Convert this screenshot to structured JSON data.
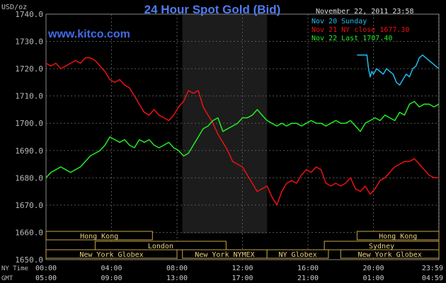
{
  "header": {
    "title": "24 Hour Spot Gold (Bid)",
    "unit": "USD/oz",
    "timestamp": "November 22, 2011 23:58",
    "site": "www.kitco.com"
  },
  "legend": [
    {
      "label": "Nov 20 Sunday",
      "color": "#22bbee"
    },
    {
      "label": "Nov 21 NY close 1677.30",
      "color": "#ee1111"
    },
    {
      "label": "Nov 22 Last 1707.40",
      "color": "#22ee22"
    }
  ],
  "markets": [
    {
      "name": "Hong Kong",
      "start": "00:00",
      "end": "06:30"
    },
    {
      "name": "London",
      "start": "03:00",
      "end": "11:00"
    },
    {
      "name": "New York Globex",
      "start": "00:00",
      "end": "08:00"
    },
    {
      "name": "New York NYMEX",
      "start": "08:20",
      "end": "13:30"
    },
    {
      "name": "NY Globex",
      "start": "13:30",
      "end": "17:15"
    },
    {
      "name": "Sydney",
      "start": "17:00",
      "end": "23:59"
    },
    {
      "name": "Hong Kong",
      "start": "19:00",
      "end": "23:59"
    },
    {
      "name": "New York Globex",
      "start": "18:00",
      "end": "23:59"
    }
  ],
  "time_axis": {
    "ny_label": "NY Time",
    "gmt_label": "GMT",
    "ny_ticks": [
      "00:00",
      "04:00",
      "08:00",
      "12:00",
      "16:00",
      "20:00",
      "23:59"
    ],
    "gmt_ticks": [
      "05:00",
      "09:00",
      "13:00",
      "17:00",
      "21:00",
      "01:00",
      "04:59"
    ]
  },
  "chart_data": {
    "type": "line",
    "title": "24 Hour Spot Gold (Bid)",
    "ylabel": "USD/oz",
    "xlabel": "NY Time",
    "xlim_hours": [
      0,
      24
    ],
    "ylim": [
      1650,
      1740
    ],
    "yticks": [
      1650,
      1660,
      1670,
      1680,
      1690,
      1700,
      1710,
      1720,
      1730,
      1740
    ],
    "shaded_hours": [
      8.33,
      13.5
    ],
    "grid": true,
    "legend_position": "top-right",
    "series": [
      {
        "name": "Nov 20 Sunday",
        "color": "#22bbee",
        "x": [
          19.0,
          19.3,
          19.6,
          19.7,
          19.8,
          19.9,
          20.0,
          20.2,
          20.4,
          20.6,
          20.8,
          21.0,
          21.2,
          21.4,
          21.6,
          21.8,
          22.0,
          22.2,
          22.4,
          22.6,
          22.8,
          23.0,
          23.2,
          23.4,
          23.6,
          23.8,
          24.0
        ],
        "y": [
          1725,
          1725,
          1725,
          1720,
          1717,
          1719,
          1718,
          1720,
          1719,
          1718,
          1720,
          1719,
          1718,
          1715,
          1714,
          1716,
          1718,
          1717,
          1720,
          1721,
          1724,
          1725,
          1724,
          1723,
          1722,
          1721,
          1720
        ]
      },
      {
        "name": "Nov 21 NY close 1677.30",
        "color": "#ee1111",
        "x": [
          0.0,
          0.3,
          0.6,
          0.9,
          1.2,
          1.5,
          1.8,
          2.1,
          2.4,
          2.7,
          3.0,
          3.3,
          3.6,
          3.9,
          4.2,
          4.5,
          4.8,
          5.1,
          5.4,
          5.7,
          6.0,
          6.3,
          6.6,
          6.9,
          7.2,
          7.5,
          7.8,
          8.1,
          8.4,
          8.7,
          9.0,
          9.3,
          9.6,
          9.9,
          10.2,
          10.5,
          10.8,
          11.1,
          11.4,
          11.7,
          12.0,
          12.3,
          12.6,
          12.9,
          13.2,
          13.5,
          13.8,
          14.1,
          14.4,
          14.7,
          15.0,
          15.3,
          15.6,
          15.9,
          16.2,
          16.5,
          16.8,
          17.1,
          17.4,
          17.7,
          18.0,
          18.3,
          18.6,
          18.9,
          19.2,
          19.5,
          19.8,
          20.1,
          20.4,
          20.7,
          21.0,
          21.3,
          21.6,
          21.9,
          22.2,
          22.5,
          22.8,
          23.1,
          23.4,
          23.7,
          24.0
        ],
        "y": [
          1722,
          1721,
          1722,
          1720,
          1721,
          1722,
          1723,
          1722,
          1724,
          1724,
          1723,
          1721,
          1719,
          1716,
          1715,
          1716,
          1714,
          1713,
          1710,
          1707,
          1704,
          1703,
          1705,
          1703,
          1702,
          1701,
          1703,
          1706,
          1708,
          1712,
          1711,
          1712,
          1706,
          1703,
          1700,
          1696,
          1693,
          1690,
          1686,
          1685,
          1684,
          1681,
          1678,
          1675,
          1676,
          1677,
          1673,
          1670,
          1675,
          1678,
          1679,
          1678,
          1681,
          1683,
          1682,
          1684,
          1683,
          1678,
          1677,
          1678,
          1677,
          1678,
          1680,
          1676,
          1675,
          1677,
          1674,
          1676,
          1679,
          1680,
          1682,
          1684,
          1685,
          1686,
          1686,
          1687,
          1685,
          1683,
          1681,
          1680,
          1680
        ]
      },
      {
        "name": "Nov 22 Last 1707.40",
        "color": "#22ee22",
        "x": [
          0.0,
          0.3,
          0.6,
          0.9,
          1.2,
          1.5,
          1.8,
          2.1,
          2.4,
          2.7,
          3.0,
          3.3,
          3.6,
          3.9,
          4.2,
          4.5,
          4.8,
          5.1,
          5.4,
          5.7,
          6.0,
          6.3,
          6.6,
          6.9,
          7.2,
          7.5,
          7.8,
          8.1,
          8.4,
          8.7,
          9.0,
          9.3,
          9.6,
          9.9,
          10.2,
          10.5,
          10.8,
          11.1,
          11.4,
          11.7,
          12.0,
          12.3,
          12.6,
          12.9,
          13.2,
          13.5,
          13.8,
          14.1,
          14.4,
          14.7,
          15.0,
          15.3,
          15.6,
          15.9,
          16.2,
          16.5,
          16.8,
          17.1,
          17.4,
          17.7,
          18.0,
          18.3,
          18.6,
          18.9,
          19.2,
          19.5,
          19.8,
          20.1,
          20.4,
          20.7,
          21.0,
          21.3,
          21.6,
          21.9,
          22.2,
          22.5,
          22.8,
          23.1,
          23.4,
          23.7,
          24.0
        ],
        "y": [
          1680,
          1682,
          1683,
          1684,
          1683,
          1682,
          1683,
          1684,
          1686,
          1688,
          1689,
          1690,
          1692,
          1695,
          1694,
          1693,
          1694,
          1692,
          1691,
          1694,
          1693,
          1694,
          1692,
          1691,
          1692,
          1693,
          1691,
          1690,
          1688,
          1689,
          1692,
          1695,
          1698,
          1699,
          1701,
          1702,
          1697,
          1698,
          1699,
          1700,
          1702,
          1702,
          1703,
          1705,
          1703,
          1701,
          1700,
          1699,
          1700,
          1699,
          1700,
          1700,
          1699,
          1700,
          1701,
          1700,
          1700,
          1699,
          1700,
          1701,
          1700,
          1700,
          1701,
          1699,
          1697,
          1700,
          1701,
          1702,
          1701,
          1703,
          1702,
          1701,
          1704,
          1703,
          1707,
          1708,
          1706,
          1707,
          1707,
          1706,
          1707
        ]
      }
    ]
  }
}
